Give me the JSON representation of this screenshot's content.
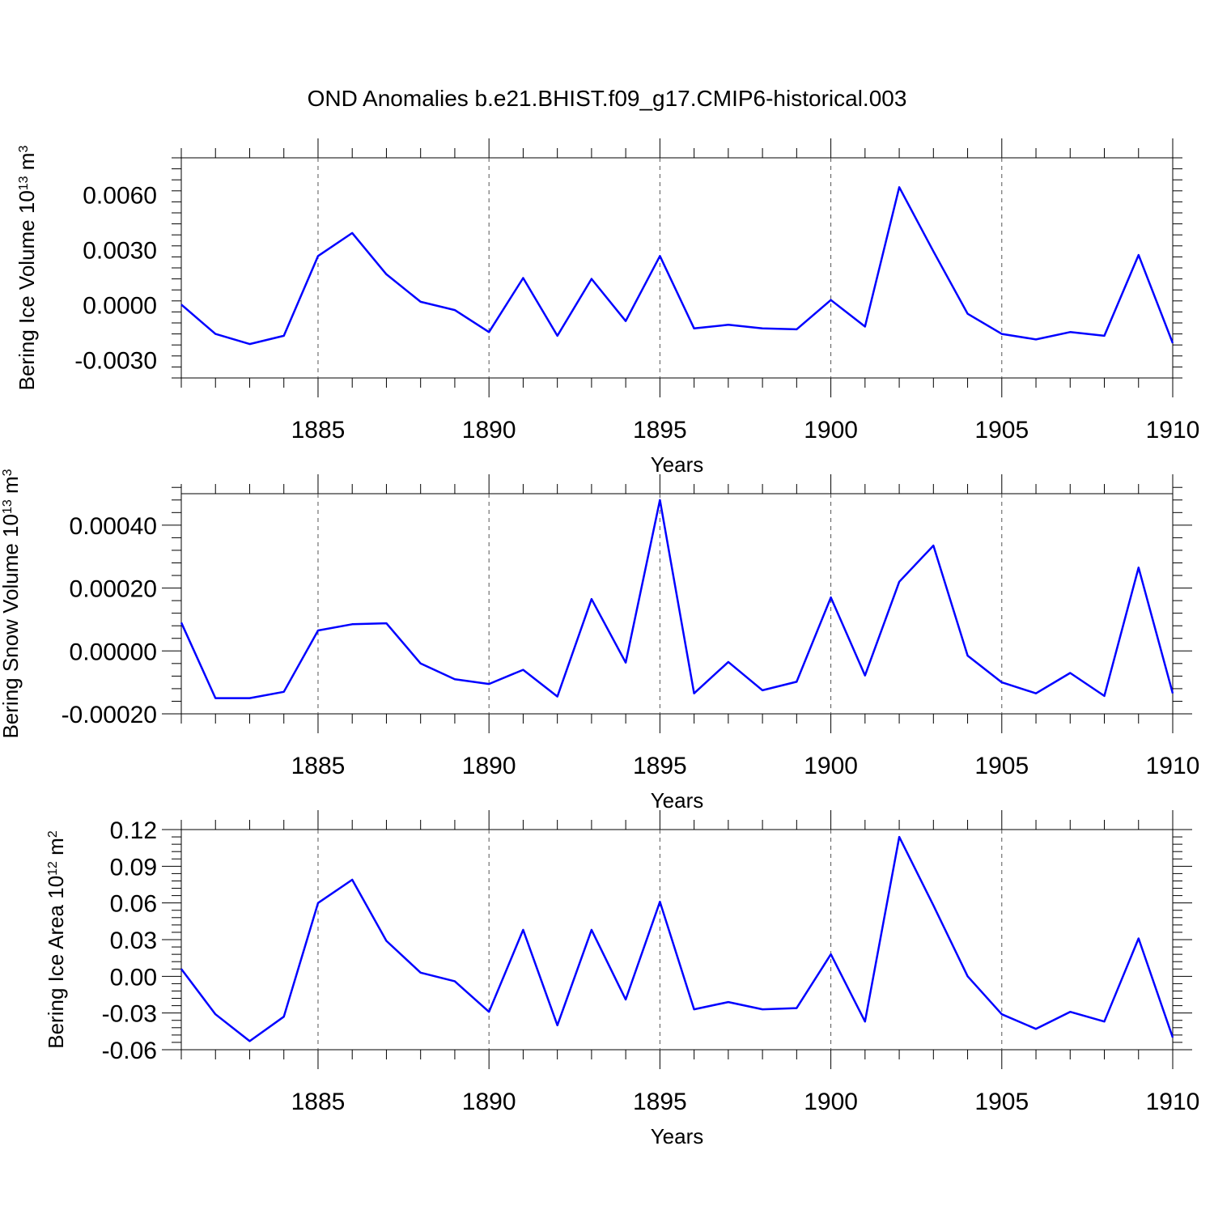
{
  "title": "OND Anomalies b.e21.BHIST.f09_g17.CMIP6-historical.003",
  "chart_data": [
    {
      "type": "line",
      "name": "ice-volume",
      "title": "OND Anomalies b.e21.BHIST.f09_g17.CMIP6-historical.003",
      "xlabel": "Years",
      "ylabel": {
        "base": "Bering Ice Volume 10",
        "exp": "13",
        "unit": " m",
        "unit_exp": "3"
      },
      "xlim": [
        1881,
        1910
      ],
      "ylim": [
        -0.004,
        0.008
      ],
      "xticks": [
        1885,
        1890,
        1895,
        1900,
        1905,
        1910
      ],
      "xtick_labels": [
        "1885",
        "1890",
        "1895",
        "1900",
        "1905",
        "1910"
      ],
      "yticks": [
        -0.003,
        0.0,
        0.003,
        0.006
      ],
      "ytick_labels": [
        "-0.0030",
        "0.0000",
        "0.0030",
        "0.0060"
      ],
      "x": [
        1881,
        1882,
        1883,
        1884,
        1885,
        1886,
        1887,
        1888,
        1889,
        1890,
        1891,
        1892,
        1893,
        1894,
        1895,
        1896,
        1897,
        1898,
        1899,
        1900,
        1901,
        1902,
        1903,
        1904,
        1905,
        1906,
        1907,
        1908,
        1909,
        1910
      ],
      "values": [
        0.0,
        -0.0016,
        -0.00215,
        -0.0017,
        0.00265,
        0.0039,
        0.00165,
        0.00015,
        -0.0003,
        -0.0015,
        0.00145,
        -0.0017,
        0.0014,
        -0.0009,
        0.00265,
        -0.0013,
        -0.0011,
        -0.0013,
        -0.00135,
        0.00025,
        -0.0012,
        0.0064,
        0.0029,
        -0.0005,
        -0.0016,
        -0.0019,
        -0.0015,
        -0.0017,
        0.0027,
        -0.0021
      ],
      "color": "#0000ff"
    },
    {
      "type": "line",
      "name": "snow-volume",
      "xlabel": "Years",
      "ylabel": {
        "base": "Bering Snow Volume 10",
        "exp": "13",
        "unit": " m",
        "unit_exp": "3"
      },
      "xlim": [
        1881,
        1910
      ],
      "ylim": [
        -0.0002,
        0.0005
      ],
      "xticks": [
        1885,
        1890,
        1895,
        1900,
        1905,
        1910
      ],
      "xtick_labels": [
        "1885",
        "1890",
        "1895",
        "1900",
        "1905",
        "1910"
      ],
      "yticks": [
        -0.0002,
        0.0,
        0.0002,
        0.0004
      ],
      "ytick_labels": [
        "-0.00020",
        "0.00000",
        "0.00020",
        "0.00040"
      ],
      "x": [
        1881,
        1882,
        1883,
        1884,
        1885,
        1886,
        1887,
        1888,
        1889,
        1890,
        1891,
        1892,
        1893,
        1894,
        1895,
        1896,
        1897,
        1898,
        1899,
        1900,
        1901,
        1902,
        1903,
        1904,
        1905,
        1906,
        1907,
        1908,
        1909,
        1910
      ],
      "values": [
        9e-05,
        -0.00015,
        -0.00015,
        -0.00013,
        6.5e-05,
        8.5e-05,
        8.8e-05,
        -4e-05,
        -9e-05,
        -0.000105,
        -6e-05,
        -0.000145,
        0.000165,
        -3.7e-05,
        0.00048,
        -0.000135,
        -3.5e-05,
        -0.000125,
        -9.8e-05,
        0.00017,
        -7.8e-05,
        0.00022,
        0.000335,
        -1.5e-05,
        -0.0001,
        -0.000135,
        -7e-05,
        -0.000143,
        0.000265,
        -0.000135
      ],
      "color": "#0000ff"
    },
    {
      "type": "line",
      "name": "ice-area",
      "xlabel": "Years",
      "ylabel": {
        "base": "Bering Ice Area 10",
        "exp": "12",
        "unit": " m",
        "unit_exp": "2"
      },
      "xlim": [
        1881,
        1910
      ],
      "ylim": [
        -0.06,
        0.12
      ],
      "xticks": [
        1885,
        1890,
        1895,
        1900,
        1905,
        1910
      ],
      "xtick_labels": [
        "1885",
        "1890",
        "1895",
        "1900",
        "1905",
        "1910"
      ],
      "yticks": [
        -0.06,
        -0.03,
        0.0,
        0.03,
        0.06,
        0.09,
        0.12
      ],
      "ytick_labels": [
        "-0.06",
        "-0.03",
        "0.00",
        "0.03",
        "0.06",
        "0.09",
        "0.12"
      ],
      "x": [
        1881,
        1882,
        1883,
        1884,
        1885,
        1886,
        1887,
        1888,
        1889,
        1890,
        1891,
        1892,
        1893,
        1894,
        1895,
        1896,
        1897,
        1898,
        1899,
        1900,
        1901,
        1902,
        1903,
        1904,
        1905,
        1906,
        1907,
        1908,
        1909,
        1910
      ],
      "values": [
        0.006,
        -0.031,
        -0.053,
        -0.033,
        0.06,
        0.079,
        0.029,
        0.003,
        -0.004,
        -0.029,
        0.038,
        -0.04,
        0.038,
        -0.019,
        0.061,
        -0.027,
        -0.021,
        -0.027,
        -0.026,
        0.018,
        -0.037,
        0.114,
        0.058,
        0.0,
        -0.031,
        -0.043,
        -0.029,
        -0.037,
        0.031,
        -0.05
      ],
      "color": "#0000ff"
    }
  ]
}
